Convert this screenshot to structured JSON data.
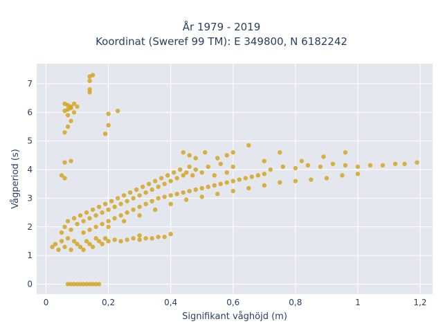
{
  "chart_data": {
    "type": "scatter",
    "title": "År 1979 - 2019",
    "subtitle": "Koordinat (Sweref 99 TM): E 349800, N 6182242",
    "xlabel": "Signifikant våghöjd (m)",
    "ylabel": "Vågperiod (s)",
    "xlim": [
      -0.03,
      1.24
    ],
    "ylim": [
      -0.35,
      7.7
    ],
    "xticks": [
      0,
      0.2,
      0.4,
      0.6,
      0.8,
      1,
      1.2
    ],
    "xtick_labels": [
      "0",
      "0,2",
      "0,4",
      "0,6",
      "0,8",
      "1",
      "1,2"
    ],
    "yticks": [
      0,
      1,
      2,
      3,
      4,
      5,
      6,
      7
    ],
    "ytick_labels": [
      "0",
      "1",
      "2",
      "3",
      "4",
      "5",
      "6",
      "7"
    ],
    "grid": true,
    "background_color": "#e5e7ef",
    "marker_color": "#d4a420",
    "series": [
      {
        "points": [
          [
            0.02,
            1.3
          ],
          [
            0.03,
            1.4
          ],
          [
            0.04,
            1.2
          ],
          [
            0.05,
            1.5
          ],
          [
            0.06,
            1.3
          ],
          [
            0.07,
            1.6
          ],
          [
            0.08,
            1.2
          ],
          [
            0.09,
            1.5
          ],
          [
            0.1,
            1.4
          ],
          [
            0.11,
            1.3
          ],
          [
            0.12,
            1.2
          ],
          [
            0.13,
            1.5
          ],
          [
            0.14,
            1.4
          ],
          [
            0.15,
            1.3
          ],
          [
            0.16,
            1.6
          ],
          [
            0.17,
            1.5
          ],
          [
            0.18,
            1.4
          ],
          [
            0.19,
            1.6
          ],
          [
            0.2,
            1.5
          ],
          [
            0.22,
            1.55
          ],
          [
            0.24,
            1.5
          ],
          [
            0.26,
            1.55
          ],
          [
            0.28,
            1.6
          ],
          [
            0.3,
            1.55
          ],
          [
            0.32,
            1.6
          ],
          [
            0.34,
            1.6
          ],
          [
            0.36,
            1.65
          ],
          [
            0.38,
            1.65
          ],
          [
            0.05,
            1.8
          ],
          [
            0.06,
            2.0
          ],
          [
            0.07,
            2.2
          ],
          [
            0.08,
            1.9
          ],
          [
            0.09,
            2.3
          ],
          [
            0.1,
            2.1
          ],
          [
            0.11,
            2.4
          ],
          [
            0.12,
            2.2
          ],
          [
            0.13,
            2.5
          ],
          [
            0.14,
            2.3
          ],
          [
            0.15,
            2.6
          ],
          [
            0.16,
            2.4
          ],
          [
            0.17,
            2.7
          ],
          [
            0.18,
            2.5
          ],
          [
            0.19,
            2.8
          ],
          [
            0.2,
            2.6
          ],
          [
            0.21,
            2.9
          ],
          [
            0.22,
            2.7
          ],
          [
            0.23,
            3.0
          ],
          [
            0.24,
            2.8
          ],
          [
            0.25,
            3.1
          ],
          [
            0.26,
            2.9
          ],
          [
            0.27,
            3.2
          ],
          [
            0.28,
            3.0
          ],
          [
            0.29,
            3.3
          ],
          [
            0.3,
            3.1
          ],
          [
            0.31,
            3.4
          ],
          [
            0.32,
            3.2
          ],
          [
            0.33,
            3.5
          ],
          [
            0.34,
            3.3
          ],
          [
            0.35,
            3.6
          ],
          [
            0.36,
            3.4
          ],
          [
            0.37,
            3.7
          ],
          [
            0.38,
            3.5
          ],
          [
            0.39,
            3.8
          ],
          [
            0.4,
            3.6
          ],
          [
            0.41,
            3.9
          ],
          [
            0.42,
            3.7
          ],
          [
            0.43,
            4.0
          ],
          [
            0.44,
            3.8
          ],
          [
            0.45,
            3.9
          ],
          [
            0.46,
            4.1
          ],
          [
            0.47,
            3.8
          ],
          [
            0.48,
            4.0
          ],
          [
            0.5,
            3.9
          ],
          [
            0.52,
            4.1
          ],
          [
            0.54,
            3.8
          ],
          [
            0.56,
            4.2
          ],
          [
            0.58,
            3.9
          ],
          [
            0.6,
            4.1
          ],
          [
            0.12,
            1.8
          ],
          [
            0.14,
            1.9
          ],
          [
            0.16,
            2.0
          ],
          [
            0.18,
            2.1
          ],
          [
            0.2,
            2.2
          ],
          [
            0.22,
            2.3
          ],
          [
            0.24,
            2.4
          ],
          [
            0.26,
            2.5
          ],
          [
            0.28,
            2.6
          ],
          [
            0.3,
            2.7
          ],
          [
            0.32,
            2.8
          ],
          [
            0.34,
            2.9
          ],
          [
            0.36,
            3.0
          ],
          [
            0.38,
            3.05
          ],
          [
            0.4,
            3.1
          ],
          [
            0.42,
            3.15
          ],
          [
            0.44,
            3.2
          ],
          [
            0.46,
            3.25
          ],
          [
            0.48,
            3.3
          ],
          [
            0.5,
            3.35
          ],
          [
            0.52,
            3.4
          ],
          [
            0.54,
            3.45
          ],
          [
            0.56,
            3.5
          ],
          [
            0.58,
            3.55
          ],
          [
            0.6,
            3.6
          ],
          [
            0.62,
            3.65
          ],
          [
            0.64,
            3.7
          ],
          [
            0.66,
            3.75
          ],
          [
            0.68,
            3.8
          ],
          [
            0.7,
            3.85
          ],
          [
            0.2,
            2.0
          ],
          [
            0.25,
            2.2
          ],
          [
            0.3,
            2.4
          ],
          [
            0.35,
            2.6
          ],
          [
            0.4,
            2.8
          ],
          [
            0.45,
            2.95
          ],
          [
            0.5,
            3.05
          ],
          [
            0.55,
            3.15
          ],
          [
            0.6,
            3.25
          ],
          [
            0.65,
            3.35
          ],
          [
            0.7,
            3.45
          ],
          [
            0.75,
            3.55
          ],
          [
            0.8,
            3.6
          ],
          [
            0.85,
            3.65
          ],
          [
            0.9,
            3.7
          ],
          [
            0.95,
            3.8
          ],
          [
            1.0,
            3.85
          ],
          [
            0.72,
            4.0
          ],
          [
            0.76,
            4.1
          ],
          [
            0.8,
            4.05
          ],
          [
            0.84,
            4.15
          ],
          [
            0.88,
            4.1
          ],
          [
            0.92,
            4.2
          ],
          [
            0.96,
            4.15
          ],
          [
            1.0,
            4.1
          ],
          [
            1.04,
            4.15
          ],
          [
            1.08,
            4.15
          ],
          [
            1.12,
            4.2
          ],
          [
            1.15,
            4.2
          ],
          [
            1.19,
            4.25
          ],
          [
            0.44,
            4.6
          ],
          [
            0.46,
            4.5
          ],
          [
            0.48,
            4.4
          ],
          [
            0.51,
            4.6
          ],
          [
            0.55,
            4.4
          ],
          [
            0.58,
            4.5
          ],
          [
            0.6,
            4.6
          ],
          [
            0.65,
            4.85
          ],
          [
            0.75,
            4.6
          ],
          [
            0.82,
            4.3
          ],
          [
            0.89,
            4.45
          ],
          [
            0.96,
            4.6
          ],
          [
            0.7,
            4.3
          ],
          [
            0.06,
            6.3
          ],
          [
            0.07,
            6.1
          ],
          [
            0.08,
            6.2
          ],
          [
            0.09,
            6.0
          ],
          [
            0.07,
            6.25
          ],
          [
            0.08,
            6.15
          ],
          [
            0.06,
            6.05
          ],
          [
            0.09,
            6.3
          ],
          [
            0.1,
            6.2
          ],
          [
            0.07,
            5.9
          ],
          [
            0.08,
            5.7
          ],
          [
            0.07,
            5.5
          ],
          [
            0.06,
            5.3
          ],
          [
            0.14,
            7.25
          ],
          [
            0.15,
            7.3
          ],
          [
            0.14,
            7.1
          ],
          [
            0.14,
            6.8
          ],
          [
            0.14,
            6.7
          ],
          [
            0.2,
            5.95
          ],
          [
            0.23,
            6.05
          ],
          [
            0.2,
            5.55
          ],
          [
            0.19,
            5.25
          ],
          [
            0.06,
            4.25
          ],
          [
            0.08,
            4.3
          ],
          [
            0.05,
            3.8
          ],
          [
            0.06,
            3.7
          ],
          [
            0.07,
            0
          ],
          [
            0.08,
            0
          ],
          [
            0.09,
            0
          ],
          [
            0.1,
            0
          ],
          [
            0.11,
            0
          ],
          [
            0.12,
            0
          ],
          [
            0.13,
            0
          ],
          [
            0.14,
            0
          ],
          [
            0.15,
            0
          ],
          [
            0.16,
            0
          ],
          [
            0.17,
            0
          ],
          [
            0.3,
            1.7
          ],
          [
            0.4,
            1.75
          ]
        ]
      }
    ]
  }
}
